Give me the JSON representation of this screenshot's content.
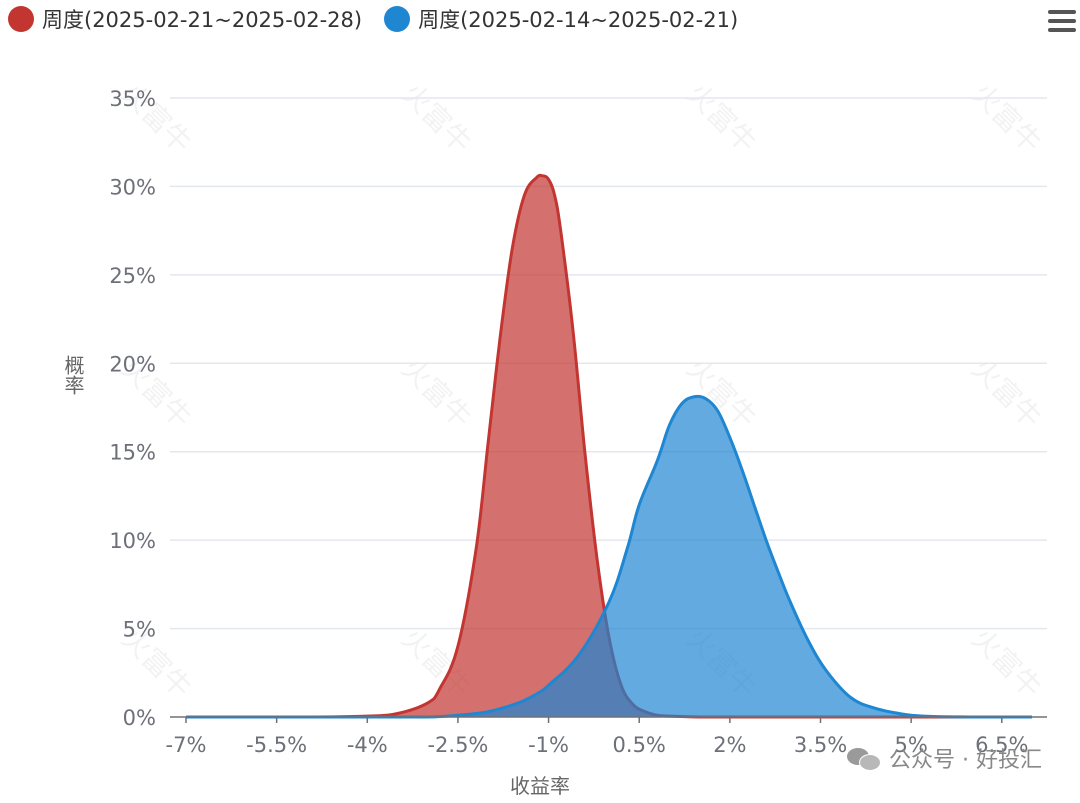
{
  "legend": {
    "items": [
      {
        "label": "周度(2025-02-21~2025-02-28)",
        "color": "#c23531"
      },
      {
        "label": "周度(2025-02-14~2025-02-21)",
        "color": "#1f86d2"
      }
    ]
  },
  "watermark": {
    "text": "公众号 · 好投汇"
  },
  "chart_data": {
    "type": "area",
    "title": "",
    "xlabel": "收益率",
    "ylabel": "概率",
    "x_range": [
      -7,
      7
    ],
    "ylim": [
      0,
      35
    ],
    "x_ticks": [
      -7,
      -5.5,
      -4,
      -2.5,
      -1,
      0.5,
      2,
      3.5,
      5,
      6.5
    ],
    "x_tick_labels": [
      "-7%",
      "-5.5%",
      "-4%",
      "-2.5%",
      "-1%",
      "0.5%",
      "2%",
      "3.5%",
      "5%",
      "6.5%"
    ],
    "y_ticks": [
      0,
      5,
      10,
      15,
      20,
      25,
      30,
      35
    ],
    "y_tick_labels": [
      "0%",
      "5%",
      "10%",
      "15%",
      "20%",
      "25%",
      "30%",
      "35%"
    ],
    "grid": true,
    "legend_position": "top-left",
    "series": [
      {
        "name": "周度(2025-02-21~2025-02-28)",
        "color": "#c23531",
        "x": [
          -7,
          -5,
          -4,
          -3.5,
          -3,
          -2.8,
          -2.5,
          -2.2,
          -2.0,
          -1.8,
          -1.6,
          -1.4,
          -1.2,
          -1.1,
          -1.0,
          -0.9,
          -0.8,
          -0.6,
          -0.4,
          -0.2,
          0.0,
          0.2,
          0.4,
          0.6,
          0.8,
          1.0,
          1.5,
          2.0,
          3,
          5,
          7
        ],
        "values": [
          0,
          0,
          0.05,
          0.2,
          0.8,
          1.6,
          4.0,
          9.5,
          15.5,
          21.5,
          26.5,
          29.5,
          30.5,
          30.6,
          30.4,
          29.5,
          27.5,
          22.0,
          15.0,
          9.0,
          4.5,
          1.8,
          0.7,
          0.3,
          0.1,
          0.05,
          0,
          0,
          0,
          0,
          0
        ]
      },
      {
        "name": "周度(2025-02-14~2025-02-21)",
        "color": "#1f86d2",
        "x": [
          -7,
          -4,
          -3,
          -2.5,
          -2.0,
          -1.5,
          -1.2,
          -1.0,
          -0.5,
          0.0,
          0.3,
          0.5,
          0.8,
          1.0,
          1.2,
          1.4,
          1.6,
          1.8,
          2.0,
          2.2,
          2.4,
          2.6,
          2.8,
          3.0,
          3.3,
          3.6,
          4.0,
          4.4,
          4.8,
          5.2,
          6.0,
          7.0
        ],
        "values": [
          0,
          0,
          0,
          0.1,
          0.3,
          0.8,
          1.3,
          1.8,
          3.5,
          6.5,
          9.5,
          12.0,
          14.5,
          16.5,
          17.7,
          18.1,
          18.0,
          17.3,
          15.8,
          14.0,
          12.0,
          10.0,
          8.2,
          6.5,
          4.3,
          2.6,
          1.1,
          0.5,
          0.2,
          0.05,
          0,
          0
        ]
      }
    ],
    "watermark_text": "火富牛"
  }
}
